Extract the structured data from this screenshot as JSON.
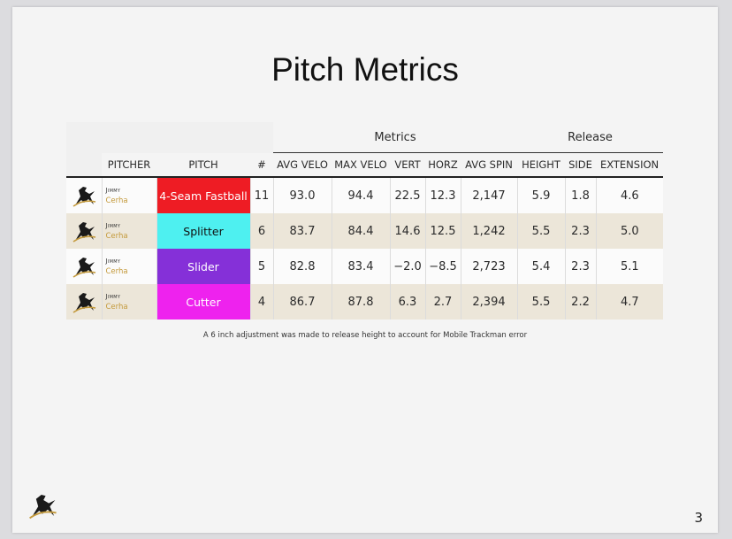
{
  "slide": {
    "title": "Pitch Metrics",
    "footnote": "A 6 inch adjustment was made to release height to account for Mobile Trackman error",
    "page_number": "3",
    "logo": "pitcher-silhouette-logo"
  },
  "table": {
    "group_headers": {
      "metrics": "Metrics",
      "release": "Release"
    },
    "columns": {
      "pitcher": "PITCHER",
      "pitch": "PITCH",
      "count": "#",
      "avg_velo": "AVG VELO",
      "max_velo": "MAX VELO",
      "vert": "VERT",
      "horz": "HORZ",
      "avg_spin": "AVG SPIN",
      "height": "HEIGHT",
      "side": "SIDE",
      "extension": "EXTENSION"
    },
    "rows": [
      {
        "first": "Jimmy",
        "last": "Cerha",
        "pitch": "4-Seam Fastball",
        "pitch_color": "#ee1c24",
        "pitch_text_color": "#ffffff",
        "count": "11",
        "avg_velo": "93.0",
        "max_velo": "94.4",
        "vert": "22.5",
        "horz": "12.3",
        "avg_spin": "2,147",
        "height": "5.9",
        "side": "1.8",
        "extension": "4.6"
      },
      {
        "first": "Jimmy",
        "last": "Cerha",
        "pitch": "Splitter",
        "pitch_color": "#4ef0f0",
        "pitch_text_color": "#111111",
        "count": "6",
        "avg_velo": "83.7",
        "max_velo": "84.4",
        "vert": "14.6",
        "horz": "12.5",
        "avg_spin": "1,242",
        "height": "5.5",
        "side": "2.3",
        "extension": "5.0"
      },
      {
        "first": "Jimmy",
        "last": "Cerha",
        "pitch": "Slider",
        "pitch_color": "#8530d8",
        "pitch_text_color": "#ffffff",
        "count": "5",
        "avg_velo": "82.8",
        "max_velo": "83.4",
        "vert": "−2.0",
        "horz": "−8.5",
        "avg_spin": "2,723",
        "height": "5.4",
        "side": "2.3",
        "extension": "5.1"
      },
      {
        "first": "Jimmy",
        "last": "Cerha",
        "pitch": "Cutter",
        "pitch_color": "#ee22ee",
        "pitch_text_color": "#ffffff",
        "count": "4",
        "avg_velo": "86.7",
        "max_velo": "87.8",
        "vert": "6.3",
        "horz": "2.7",
        "avg_spin": "2,394",
        "height": "5.5",
        "side": "2.2",
        "extension": "4.7"
      }
    ]
  }
}
